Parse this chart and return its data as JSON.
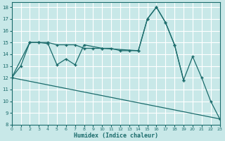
{
  "xlabel": "Humidex (Indice chaleur)",
  "xlim": [
    0,
    23
  ],
  "ylim": [
    8,
    18.4
  ],
  "yticks": [
    8,
    9,
    10,
    11,
    12,
    13,
    14,
    15,
    16,
    17,
    18
  ],
  "xticks": [
    0,
    1,
    2,
    3,
    4,
    5,
    6,
    7,
    8,
    9,
    10,
    11,
    12,
    13,
    14,
    15,
    16,
    17,
    18,
    19,
    20,
    21,
    22,
    23
  ],
  "bg_color": "#c8e8e8",
  "line_color": "#1a6b6b",
  "grid_major_color": "#ffffff",
  "grid_minor_color": "#dff0f0",
  "line1_x": [
    0,
    1,
    2,
    3,
    4,
    5,
    6,
    7,
    8,
    10,
    14,
    15,
    16,
    17,
    18,
    19,
    20,
    21,
    22,
    23
  ],
  "line1_y": [
    12,
    13,
    15,
    15,
    14.9,
    13.1,
    13.6,
    13.1,
    14.8,
    14.5,
    14.3,
    17.0,
    18.0,
    16.7,
    14.8,
    11.8,
    13.8,
    12.0,
    10.0,
    8.5
  ],
  "line2_x": [
    0,
    2,
    3,
    4,
    5,
    6,
    7,
    8,
    9,
    10,
    11,
    12,
    13,
    14,
    15,
    16,
    17,
    18,
    19
  ],
  "line2_y": [
    12,
    15,
    15,
    15,
    14.8,
    14.8,
    14.8,
    14.5,
    14.5,
    14.5,
    14.5,
    14.3,
    14.3,
    14.3,
    17.0,
    18.0,
    16.7,
    14.8,
    11.8
  ],
  "line3_x": [
    0,
    23
  ],
  "line3_y": [
    12,
    8.5
  ]
}
